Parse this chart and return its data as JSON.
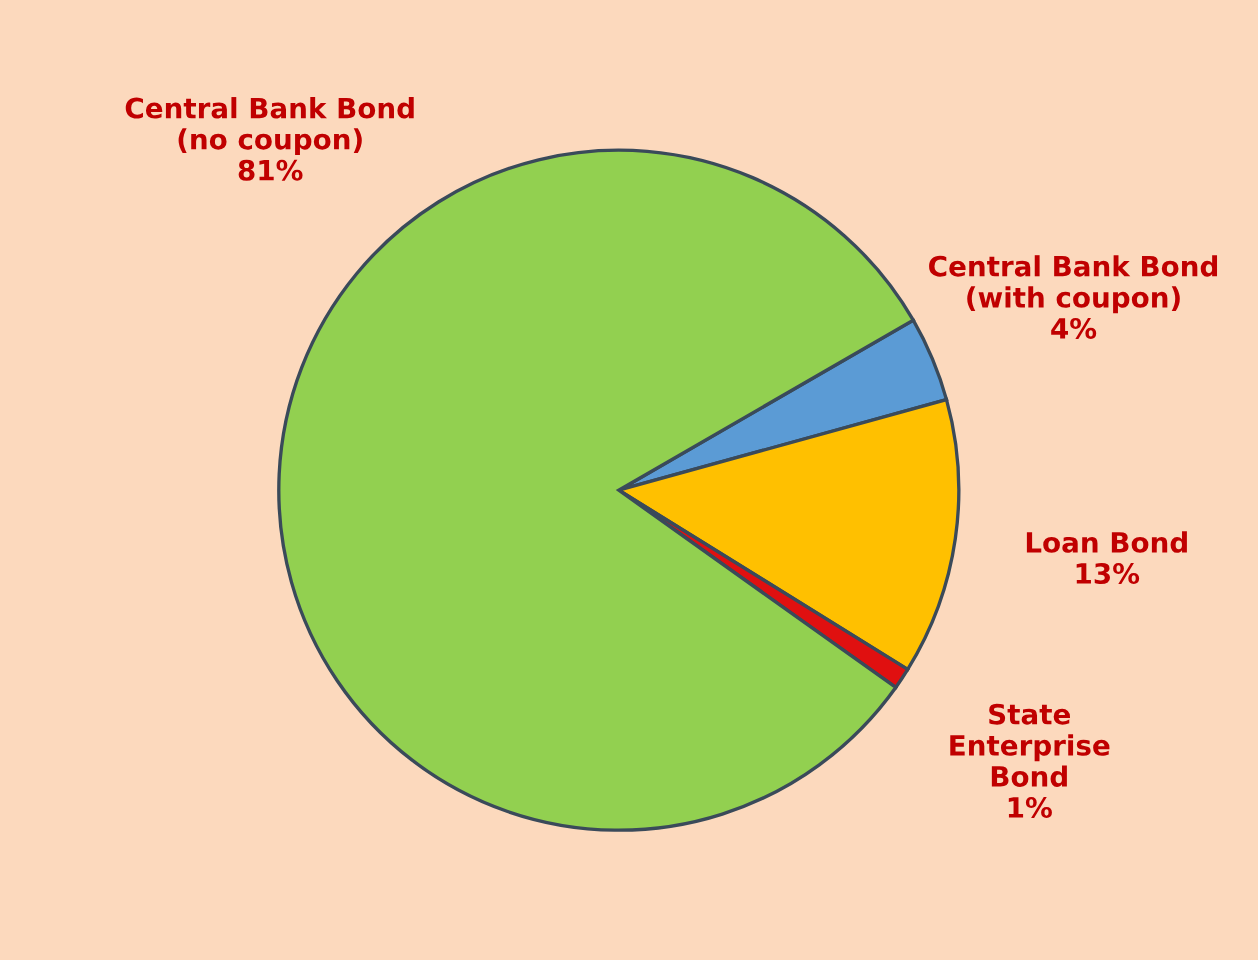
{
  "chart_data": {
    "type": "pie",
    "categories": [
      "Central Bank Bond\n(with coupon)",
      "Loan Bond",
      "State\nEnterprise\nBond",
      "Central Bank Bond\n(no coupon)"
    ],
    "values": [
      4,
      13,
      1,
      81
    ],
    "value_labels": [
      "4%",
      "13%",
      "1%",
      "81%"
    ],
    "colors": [
      "#5b9bd5",
      "#ffc000",
      "#e01010",
      "#92d050"
    ]
  }
}
